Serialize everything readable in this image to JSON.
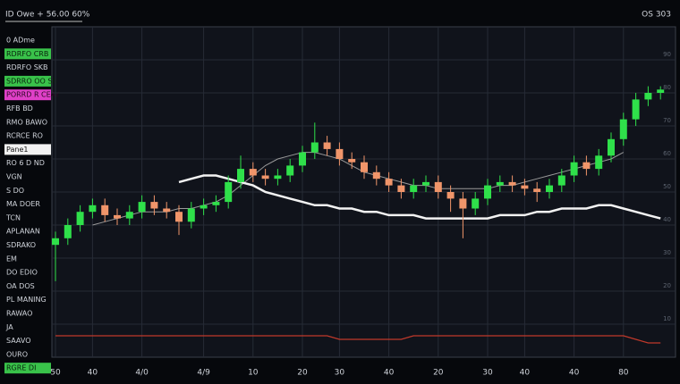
{
  "chart_data": {
    "type": "candlestick",
    "title": "ID Owe + 56.00 60%",
    "corner_label": "OS 303",
    "sidebar": [
      {
        "text": "0 ADme",
        "style": "plain"
      },
      {
        "text": "RDRFO CRB",
        "style": "green"
      },
      {
        "text": "RDRFO SKB",
        "style": "plain"
      },
      {
        "text": "SDRRO OO SB",
        "style": "green"
      },
      {
        "text": "PORRD R CEAY",
        "style": "pink"
      },
      {
        "text": "RFB BD",
        "style": "plain"
      },
      {
        "text": "RMO BAWO",
        "style": "plain"
      },
      {
        "text": "RCRCE RO",
        "style": "plain"
      },
      {
        "text": "Pane1",
        "style": "white"
      },
      {
        "text": "RO 6 D ND",
        "style": "plain"
      },
      {
        "text": "VGN",
        "style": "plain"
      },
      {
        "text": "S DO",
        "style": "plain"
      },
      {
        "text": "MA DOER",
        "style": "plain"
      },
      {
        "text": "TCN",
        "style": "plain"
      },
      {
        "text": "APLANAN",
        "style": "plain"
      },
      {
        "text": "SDRAKO",
        "style": "plain"
      },
      {
        "text": "EM",
        "style": "plain"
      },
      {
        "text": "DO EDIO",
        "style": "plain"
      },
      {
        "text": "OA DOS",
        "style": "plain"
      },
      {
        "text": "PL MANING",
        "style": "plain"
      },
      {
        "text": "RAWAO",
        "style": "plain"
      },
      {
        "text": "JA",
        "style": "plain"
      },
      {
        "text": "SAAVO",
        "style": "plain"
      },
      {
        "text": "OURO",
        "style": "plain"
      },
      {
        "text": "RGRE DI",
        "style": "green"
      }
    ],
    "categories": [
      "50",
      null,
      null,
      "40",
      null,
      null,
      null,
      "4/0",
      null,
      null,
      null,
      null,
      "4/9",
      null,
      null,
      null,
      "10",
      null,
      null,
      null,
      "20",
      null,
      null,
      "30",
      null,
      null,
      null,
      "40",
      null,
      null,
      null,
      "20",
      null,
      null,
      null,
      "30",
      null,
      null,
      "40",
      null,
      null,
      null,
      "40",
      null,
      null,
      null,
      "80",
      null,
      null,
      null
    ],
    "open": [
      34,
      36,
      40,
      44,
      46,
      43,
      42,
      44,
      47,
      45,
      44,
      41,
      45,
      46,
      47,
      53,
      57,
      55,
      54,
      55,
      58,
      62,
      65,
      63,
      60,
      59,
      56,
      54,
      52,
      50,
      52,
      53,
      50,
      48,
      45,
      48,
      52,
      53,
      52,
      51,
      50,
      52,
      55,
      59,
      57,
      61,
      66,
      72,
      78,
      80
    ],
    "high": [
      38,
      42,
      46,
      48,
      48,
      45,
      46,
      49,
      49,
      47,
      46,
      47,
      48,
      49,
      55,
      61,
      59,
      57,
      57,
      60,
      64,
      71,
      67,
      65,
      62,
      61,
      58,
      56,
      54,
      54,
      55,
      55,
      52,
      50,
      50,
      54,
      55,
      55,
      54,
      53,
      54,
      57,
      61,
      61,
      63,
      68,
      74,
      80,
      82,
      82
    ],
    "low": [
      23,
      34,
      38,
      42,
      41,
      40,
      40,
      42,
      43,
      42,
      37,
      39,
      43,
      44,
      45,
      51,
      53,
      52,
      52,
      53,
      56,
      60,
      61,
      58,
      57,
      54,
      52,
      50,
      48,
      48,
      50,
      48,
      44,
      36,
      43,
      46,
      50,
      50,
      49,
      47,
      48,
      50,
      53,
      55,
      55,
      59,
      64,
      70,
      76,
      78
    ],
    "close": [
      36,
      40,
      44,
      46,
      43,
      42,
      44,
      47,
      45,
      44,
      41,
      45,
      46,
      47,
      53,
      57,
      55,
      54,
      55,
      58,
      62,
      65,
      63,
      60,
      59,
      56,
      54,
      52,
      50,
      52,
      53,
      50,
      48,
      45,
      48,
      52,
      53,
      52,
      51,
      50,
      52,
      55,
      59,
      57,
      61,
      66,
      72,
      78,
      80,
      81
    ],
    "up_color": "#2fe04a",
    "down_color": "#f0956a",
    "series": [
      {
        "color": "#9a9a9a",
        "values": [
          null,
          null,
          null,
          40,
          41,
          42,
          43,
          44,
          44,
          44,
          45,
          45,
          46,
          47,
          49,
          52,
          55,
          58,
          60,
          61,
          62,
          62,
          61,
          60,
          58,
          56,
          55,
          54,
          53,
          52,
          52,
          51,
          51,
          51,
          51,
          51,
          52,
          52,
          53,
          54,
          55,
          56,
          57,
          58,
          59,
          60,
          62,
          null,
          null,
          null
        ]
      },
      {
        "color": "#f2f2f2",
        "values": [
          null,
          null,
          null,
          null,
          null,
          null,
          null,
          null,
          null,
          null,
          53,
          54,
          55,
          55,
          54,
          53,
          52,
          50,
          49,
          48,
          47,
          46,
          46,
          45,
          45,
          44,
          44,
          43,
          43,
          43,
          42,
          42,
          42,
          42,
          42,
          42,
          43,
          43,
          43,
          44,
          44,
          45,
          45,
          45,
          46,
          46,
          45,
          44,
          43,
          42
        ]
      }
    ],
    "indicator": {
      "color": "#c0392b",
      "ylim": [
        0,
        10
      ],
      "values": [
        6,
        6,
        6,
        6,
        6,
        6,
        6,
        6,
        6,
        6,
        6,
        6,
        6,
        6,
        6,
        6,
        6,
        6,
        6,
        6,
        6,
        6,
        6,
        5,
        5,
        5,
        5,
        5,
        5,
        6,
        6,
        6,
        6,
        6,
        6,
        6,
        6,
        6,
        6,
        6,
        6,
        6,
        6,
        6,
        6,
        6,
        6,
        5,
        4,
        4
      ]
    },
    "ylim": [
      0,
      100
    ],
    "yticks": [
      10,
      20,
      30,
      40,
      50,
      60,
      70,
      80,
      90
    ],
    "grid": true
  }
}
